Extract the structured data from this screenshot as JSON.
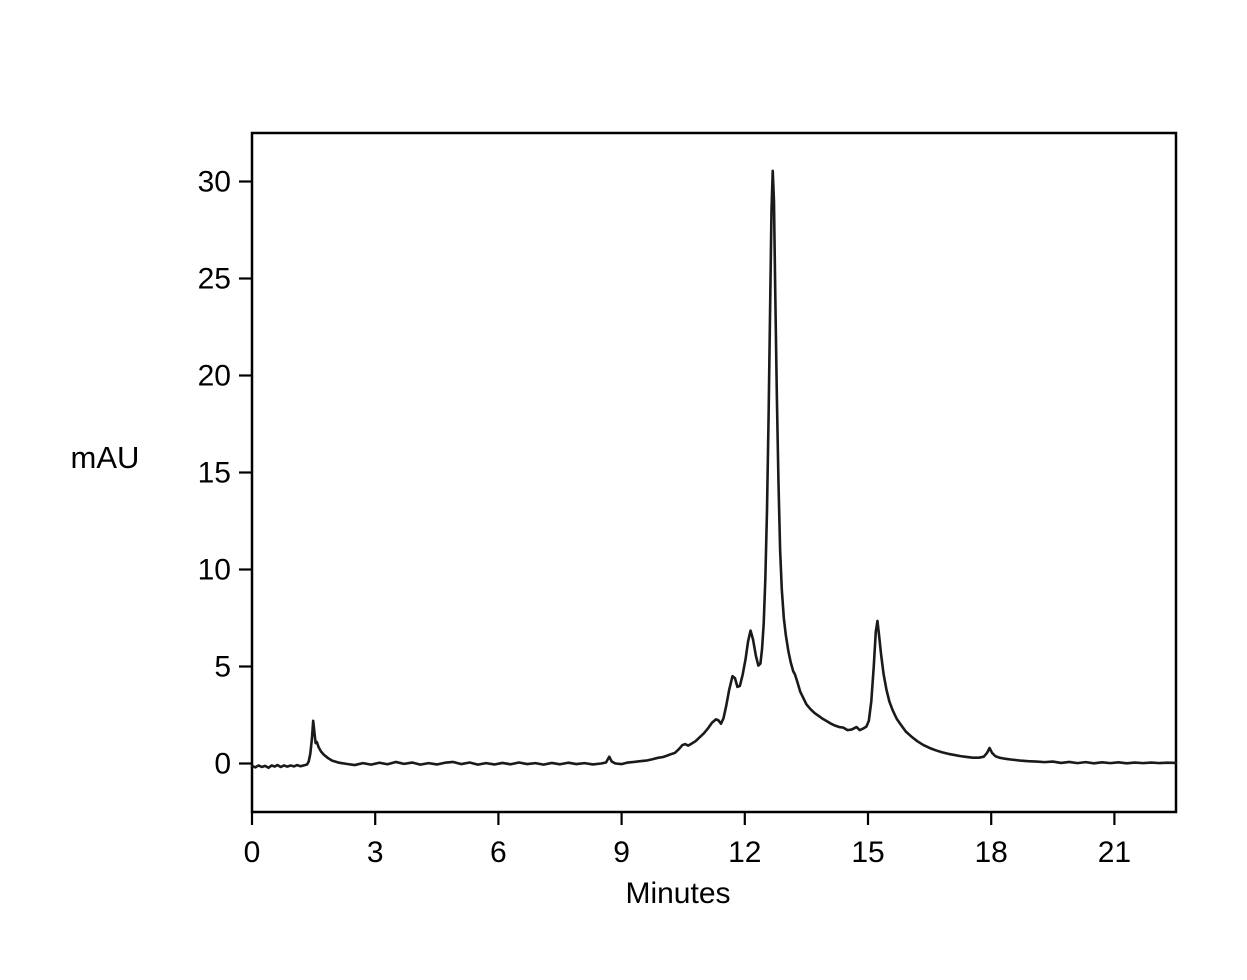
{
  "chart_data": {
    "type": "line",
    "title": "",
    "xlabel": "Minutes",
    "ylabel": "mAU",
    "xlim": [
      0,
      22.5
    ],
    "ylim": [
      -2.5,
      32.5
    ],
    "grid": false,
    "legend": "none",
    "x_ticks": [
      0,
      3,
      6,
      9,
      12,
      15,
      18,
      21
    ],
    "x_tick_labels": [
      "0",
      "3",
      "6",
      "9",
      "12",
      "15",
      "18",
      "21"
    ],
    "y_ticks": [
      0,
      5,
      10,
      15,
      20,
      25,
      30
    ],
    "y_tick_labels": [
      "0",
      "5",
      "10",
      "15",
      "20",
      "25",
      "30"
    ],
    "line_color": "#1a1a1a",
    "frame_color": "#000000",
    "background": "#ffffff",
    "notable_peaks": [
      {
        "time_min": 1.5,
        "height_mau": 2.2
      },
      {
        "time_min": 10.55,
        "height_mau": 1.0
      },
      {
        "time_min": 11.3,
        "height_mau": 2.3
      },
      {
        "time_min": 11.7,
        "height_mau": 4.5
      },
      {
        "time_min": 12.15,
        "height_mau": 6.85
      },
      {
        "time_min": 12.68,
        "height_mau": 30.5
      },
      {
        "time_min": 15.23,
        "height_mau": 7.35
      },
      {
        "time_min": 17.95,
        "height_mau": 0.8
      }
    ],
    "series": [
      {
        "name": "detector-signal",
        "points": [
          [
            0.0,
            -0.12
          ],
          [
            0.08,
            -0.2
          ],
          [
            0.16,
            -0.1
          ],
          [
            0.24,
            -0.18
          ],
          [
            0.32,
            -0.12
          ],
          [
            0.4,
            -0.22
          ],
          [
            0.48,
            -0.1
          ],
          [
            0.55,
            -0.16
          ],
          [
            0.62,
            -0.08
          ],
          [
            0.7,
            -0.18
          ],
          [
            0.78,
            -0.1
          ],
          [
            0.86,
            -0.16
          ],
          [
            0.94,
            -0.1
          ],
          [
            1.02,
            -0.15
          ],
          [
            1.1,
            -0.08
          ],
          [
            1.18,
            -0.14
          ],
          [
            1.26,
            -0.1
          ],
          [
            1.34,
            -0.05
          ],
          [
            1.38,
            0.1
          ],
          [
            1.42,
            0.5
          ],
          [
            1.46,
            1.3
          ],
          [
            1.49,
            2.2
          ],
          [
            1.52,
            1.6
          ],
          [
            1.55,
            1.05
          ],
          [
            1.58,
            1.1
          ],
          [
            1.62,
            0.85
          ],
          [
            1.68,
            0.62
          ],
          [
            1.75,
            0.45
          ],
          [
            1.85,
            0.28
          ],
          [
            1.95,
            0.15
          ],
          [
            2.1,
            0.05
          ],
          [
            2.3,
            -0.02
          ],
          [
            2.5,
            -0.08
          ],
          [
            2.7,
            0.02
          ],
          [
            2.9,
            -0.06
          ],
          [
            3.1,
            0.04
          ],
          [
            3.3,
            -0.04
          ],
          [
            3.5,
            0.08
          ],
          [
            3.7,
            -0.02
          ],
          [
            3.9,
            0.05
          ],
          [
            4.1,
            -0.06
          ],
          [
            4.3,
            0.02
          ],
          [
            4.5,
            -0.05
          ],
          [
            4.7,
            0.04
          ],
          [
            4.9,
            0.08
          ],
          [
            5.1,
            -0.03
          ],
          [
            5.3,
            0.05
          ],
          [
            5.5,
            -0.06
          ],
          [
            5.7,
            0.02
          ],
          [
            5.9,
            -0.05
          ],
          [
            6.1,
            0.03
          ],
          [
            6.3,
            -0.04
          ],
          [
            6.5,
            0.05
          ],
          [
            6.7,
            -0.03
          ],
          [
            6.9,
            0.02
          ],
          [
            7.1,
            -0.06
          ],
          [
            7.3,
            0.03
          ],
          [
            7.5,
            -0.04
          ],
          [
            7.7,
            0.04
          ],
          [
            7.9,
            -0.03
          ],
          [
            8.1,
            0.02
          ],
          [
            8.3,
            -0.05
          ],
          [
            8.5,
            0.0
          ],
          [
            8.62,
            0.05
          ],
          [
            8.7,
            0.35
          ],
          [
            8.76,
            0.1
          ],
          [
            8.85,
            0.0
          ],
          [
            9.0,
            -0.03
          ],
          [
            9.15,
            0.05
          ],
          [
            9.3,
            0.08
          ],
          [
            9.45,
            0.12
          ],
          [
            9.6,
            0.15
          ],
          [
            9.75,
            0.22
          ],
          [
            9.9,
            0.3
          ],
          [
            10.0,
            0.33
          ],
          [
            10.1,
            0.4
          ],
          [
            10.2,
            0.48
          ],
          [
            10.3,
            0.55
          ],
          [
            10.4,
            0.75
          ],
          [
            10.48,
            0.95
          ],
          [
            10.55,
            1.0
          ],
          [
            10.62,
            0.92
          ],
          [
            10.7,
            1.02
          ],
          [
            10.8,
            1.15
          ],
          [
            10.9,
            1.35
          ],
          [
            11.0,
            1.55
          ],
          [
            11.1,
            1.8
          ],
          [
            11.2,
            2.1
          ],
          [
            11.3,
            2.28
          ],
          [
            11.36,
            2.22
          ],
          [
            11.42,
            2.05
          ],
          [
            11.48,
            2.32
          ],
          [
            11.55,
            3.0
          ],
          [
            11.62,
            3.8
          ],
          [
            11.7,
            4.5
          ],
          [
            11.76,
            4.4
          ],
          [
            11.82,
            3.95
          ],
          [
            11.88,
            4.0
          ],
          [
            11.95,
            4.6
          ],
          [
            12.02,
            5.4
          ],
          [
            12.08,
            6.3
          ],
          [
            12.14,
            6.85
          ],
          [
            12.2,
            6.4
          ],
          [
            12.27,
            5.55
          ],
          [
            12.33,
            5.05
          ],
          [
            12.38,
            5.15
          ],
          [
            12.42,
            5.9
          ],
          [
            12.46,
            7.2
          ],
          [
            12.5,
            9.5
          ],
          [
            12.54,
            13.0
          ],
          [
            12.58,
            18.0
          ],
          [
            12.62,
            24.0
          ],
          [
            12.65,
            28.5
          ],
          [
            12.68,
            30.55
          ],
          [
            12.71,
            29.0
          ],
          [
            12.74,
            24.5
          ],
          [
            12.78,
            19.0
          ],
          [
            12.82,
            14.5
          ],
          [
            12.86,
            11.0
          ],
          [
            12.9,
            9.0
          ],
          [
            12.95,
            7.5
          ],
          [
            13.0,
            6.6
          ],
          [
            13.06,
            5.8
          ],
          [
            13.12,
            5.2
          ],
          [
            13.18,
            4.75
          ],
          [
            13.22,
            4.6
          ],
          [
            13.28,
            4.2
          ],
          [
            13.35,
            3.7
          ],
          [
            13.42,
            3.4
          ],
          [
            13.5,
            3.05
          ],
          [
            13.6,
            2.8
          ],
          [
            13.7,
            2.6
          ],
          [
            13.8,
            2.45
          ],
          [
            13.9,
            2.3
          ],
          [
            14.0,
            2.18
          ],
          [
            14.1,
            2.05
          ],
          [
            14.2,
            1.95
          ],
          [
            14.3,
            1.88
          ],
          [
            14.4,
            1.85
          ],
          [
            14.5,
            1.72
          ],
          [
            14.6,
            1.75
          ],
          [
            14.72,
            1.88
          ],
          [
            14.8,
            1.72
          ],
          [
            14.88,
            1.8
          ],
          [
            14.96,
            1.9
          ],
          [
            15.02,
            2.2
          ],
          [
            15.08,
            3.2
          ],
          [
            15.14,
            5.0
          ],
          [
            15.19,
            6.8
          ],
          [
            15.23,
            7.35
          ],
          [
            15.27,
            6.6
          ],
          [
            15.32,
            5.6
          ],
          [
            15.38,
            4.6
          ],
          [
            15.45,
            3.8
          ],
          [
            15.52,
            3.2
          ],
          [
            15.6,
            2.75
          ],
          [
            15.7,
            2.3
          ],
          [
            15.8,
            2.0
          ],
          [
            15.92,
            1.65
          ],
          [
            16.05,
            1.4
          ],
          [
            16.2,
            1.15
          ],
          [
            16.35,
            0.95
          ],
          [
            16.5,
            0.8
          ],
          [
            16.65,
            0.68
          ],
          [
            16.8,
            0.58
          ],
          [
            16.95,
            0.5
          ],
          [
            17.1,
            0.44
          ],
          [
            17.25,
            0.38
          ],
          [
            17.4,
            0.34
          ],
          [
            17.55,
            0.3
          ],
          [
            17.7,
            0.3
          ],
          [
            17.82,
            0.35
          ],
          [
            17.9,
            0.55
          ],
          [
            17.96,
            0.8
          ],
          [
            18.02,
            0.55
          ],
          [
            18.1,
            0.38
          ],
          [
            18.2,
            0.3
          ],
          [
            18.35,
            0.24
          ],
          [
            18.5,
            0.2
          ],
          [
            18.7,
            0.15
          ],
          [
            18.9,
            0.12
          ],
          [
            19.1,
            0.1
          ],
          [
            19.3,
            0.07
          ],
          [
            19.5,
            0.1
          ],
          [
            19.7,
            0.03
          ],
          [
            19.9,
            0.08
          ],
          [
            20.1,
            0.02
          ],
          [
            20.3,
            0.07
          ],
          [
            20.5,
            0.01
          ],
          [
            20.7,
            0.06
          ],
          [
            20.9,
            0.02
          ],
          [
            21.1,
            0.06
          ],
          [
            21.3,
            0.01
          ],
          [
            21.5,
            0.05
          ],
          [
            21.7,
            0.02
          ],
          [
            21.9,
            0.05
          ],
          [
            22.1,
            0.02
          ],
          [
            22.3,
            0.04
          ],
          [
            22.5,
            0.03
          ]
        ]
      }
    ]
  }
}
